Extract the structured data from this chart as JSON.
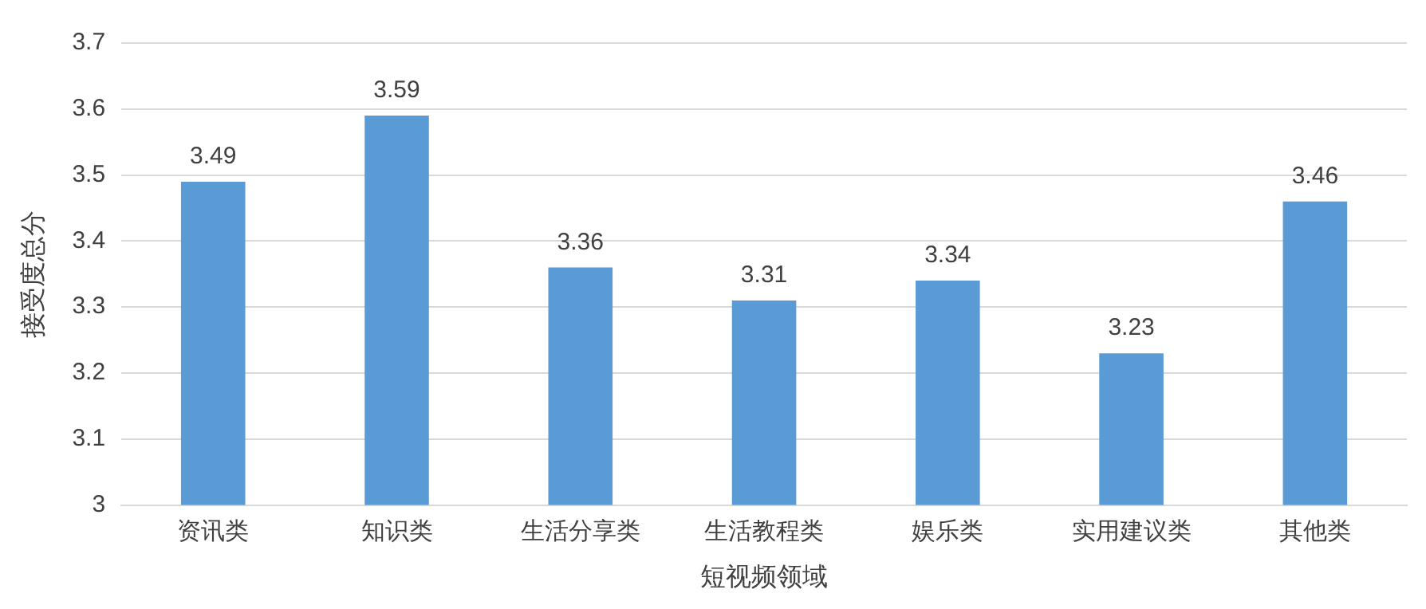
{
  "chart_data": {
    "type": "bar",
    "xlabel": "短视频领域",
    "ylabel": "接受度总分",
    "categories": [
      "资讯类",
      "知识类",
      "生活分享类",
      "生活教程类",
      "娱乐类",
      "实用建议类",
      "其他类"
    ],
    "values": [
      3.49,
      3.59,
      3.36,
      3.31,
      3.34,
      3.23,
      3.46
    ],
    "color": "#5b9bd5",
    "ylim": [
      3,
      3.7
    ],
    "yticks": [
      3,
      3.1,
      3.2,
      3.3,
      3.4,
      3.5,
      3.6,
      3.7
    ],
    "grid": "y",
    "data_labels": true,
    "legend": false
  }
}
